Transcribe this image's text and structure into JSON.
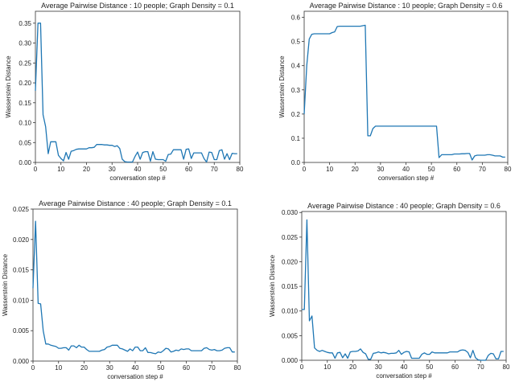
{
  "chart_data": [
    {
      "type": "line",
      "title": "Average Pairwise Distance : 10 people; Graph Density = 0.1",
      "xlabel": "conversation step #",
      "ylabel": "Wasserstein Distance",
      "xlim": [
        0,
        80
      ],
      "ylim": [
        0,
        0.38
      ],
      "xticks": [
        "0",
        "10",
        "20",
        "30",
        "40",
        "50",
        "60",
        "70",
        "80"
      ],
      "yticks": [
        "0.00",
        "0.05",
        "0.10",
        "0.15",
        "0.20",
        "0.25",
        "0.30",
        "0.35"
      ],
      "grid": false,
      "color": "#1f77b4",
      "x_start": 0,
      "values": [
        0.18,
        0.35,
        0.35,
        0.12,
        0.09,
        0.022,
        0.052,
        0.052,
        0.052,
        0.018,
        0.01,
        0.004,
        0.025,
        0.008,
        0.028,
        0.03,
        0.033,
        0.034,
        0.034,
        0.034,
        0.034,
        0.037,
        0.037,
        0.038,
        0.045,
        0.045,
        0.045,
        0.044,
        0.044,
        0.043,
        0.043,
        0.04,
        0.042,
        0.035,
        0.008,
        0.002,
        0.001,
        0.001,
        0.001,
        0.015,
        0.026,
        0.008,
        0.025,
        0.027,
        0.027,
        0.003,
        0.027,
        0.008,
        0.007,
        0.007,
        0.007,
        0.003,
        0.02,
        0.021,
        0.032,
        0.032,
        0.032,
        0.032,
        0.008,
        0.033,
        0.034,
        0.01,
        0.024,
        0.024,
        0.024,
        0.024,
        0.01,
        0.001,
        0.026,
        0.025,
        0.007,
        0.007,
        0.03,
        0.032,
        0.008,
        0.022,
        0.007,
        0.023,
        0.022,
        0.022
      ]
    },
    {
      "type": "line",
      "title": "Average Pairwise Distance : 10 people; Graph Density = 0.6",
      "xlabel": "conversation step #",
      "ylabel": "Wasserstein Distance",
      "xlim": [
        0,
        80
      ],
      "ylim": [
        0,
        0.625
      ],
      "xticks": [
        "0",
        "10",
        "20",
        "30",
        "40",
        "50",
        "60",
        "70",
        "80"
      ],
      "yticks": [
        "0.0",
        "0.1",
        "0.2",
        "0.3",
        "0.4",
        "0.5",
        "0.6"
      ],
      "grid": false,
      "color": "#1f77b4",
      "x_start": 0,
      "values": [
        0.2,
        0.4,
        0.51,
        0.53,
        0.532,
        0.532,
        0.532,
        0.532,
        0.532,
        0.532,
        0.532,
        0.537,
        0.54,
        0.562,
        0.563,
        0.563,
        0.563,
        0.563,
        0.563,
        0.563,
        0.563,
        0.563,
        0.563,
        0.565,
        0.567,
        0.11,
        0.11,
        0.14,
        0.15,
        0.15,
        0.15,
        0.15,
        0.15,
        0.15,
        0.15,
        0.15,
        0.15,
        0.15,
        0.15,
        0.15,
        0.15,
        0.15,
        0.15,
        0.15,
        0.15,
        0.15,
        0.15,
        0.15,
        0.15,
        0.15,
        0.15,
        0.15,
        0.15,
        0.02,
        0.032,
        0.032,
        0.032,
        0.032,
        0.032,
        0.035,
        0.035,
        0.035,
        0.036,
        0.036,
        0.037,
        0.037,
        0.01,
        0.027,
        0.03,
        0.03,
        0.03,
        0.03,
        0.032,
        0.032,
        0.03,
        0.027,
        0.027,
        0.027,
        0.022,
        0.022
      ]
    },
    {
      "type": "line",
      "title": "Average Pairwise Distance : 40 people; Graph Density = 0.1",
      "xlabel": "conversation step #",
      "ylabel": "Wasserstein Distance",
      "xlim": [
        0,
        80
      ],
      "ylim": [
        0,
        0.025
      ],
      "xticks": [
        "0",
        "10",
        "20",
        "30",
        "40",
        "50",
        "60",
        "70",
        "80"
      ],
      "yticks": [
        "0.000",
        "0.005",
        "0.010",
        "0.015",
        "0.020",
        "0.025"
      ],
      "grid": false,
      "color": "#1f77b4",
      "x_start": 0,
      "values": [
        0.012,
        0.023,
        0.0095,
        0.0094,
        0.005,
        0.0028,
        0.0028,
        0.0026,
        0.0025,
        0.0024,
        0.0021,
        0.0021,
        0.0022,
        0.0022,
        0.0018,
        0.0025,
        0.0025,
        0.0022,
        0.0026,
        0.0023,
        0.0023,
        0.0019,
        0.0016,
        0.0016,
        0.0016,
        0.0016,
        0.0016,
        0.0018,
        0.0019,
        0.0023,
        0.0024,
        0.0026,
        0.0026,
        0.0026,
        0.0021,
        0.002,
        0.0018,
        0.0016,
        0.002,
        0.0017,
        0.0023,
        0.0023,
        0.0017,
        0.0017,
        0.0022,
        0.0014,
        0.0014,
        0.0013,
        0.0012,
        0.0015,
        0.0014,
        0.0017,
        0.0021,
        0.002,
        0.0015,
        0.0016,
        0.0018,
        0.0017,
        0.002,
        0.0019,
        0.002,
        0.002,
        0.0017,
        0.0017,
        0.0017,
        0.0017,
        0.0017,
        0.0021,
        0.0022,
        0.0019,
        0.0018,
        0.0019,
        0.0017,
        0.0017,
        0.0018,
        0.0021,
        0.0022,
        0.0022,
        0.0015,
        0.0015
      ]
    },
    {
      "type": "line",
      "title": "Average Pairwise Distance : 40 people; Graph Density = 0.6",
      "xlabel": "conversation step #",
      "ylabel": "Wasserstein Distance",
      "xlim": [
        0,
        80
      ],
      "ylim": [
        0,
        0.0302
      ],
      "xticks": [
        "0",
        "10",
        "20",
        "30",
        "40",
        "50",
        "60",
        "70",
        "80"
      ],
      "yticks": [
        "0.000",
        "0.005",
        "0.010",
        "0.015",
        "0.020",
        "0.025",
        "0.030"
      ],
      "grid": false,
      "color": "#1f77b4",
      "x_start": 0,
      "values": [
        0.0103,
        0.0103,
        0.0285,
        0.008,
        0.009,
        0.0025,
        0.002,
        0.0018,
        0.002,
        0.0018,
        0.0016,
        0.0015,
        0.0015,
        0.0004,
        0.0015,
        0.0016,
        0.0005,
        0.0013,
        0.0004,
        0.0017,
        0.0018,
        0.0018,
        0.0019,
        0.0023,
        0.0016,
        0.0013,
        0.0002,
        0.0002,
        0.0014,
        0.0015,
        0.0017,
        0.0015,
        0.0016,
        0.0015,
        0.0013,
        0.0014,
        0.0014,
        0.0015,
        0.002,
        0.0012,
        0.0016,
        0.0018,
        0.0017,
        0.0004,
        0.0004,
        0.0004,
        0.0004,
        0.0012,
        0.0015,
        0.0012,
        0.0012,
        0.0017,
        0.0015,
        0.0015,
        0.0015,
        0.0015,
        0.0015,
        0.0015,
        0.0017,
        0.0017,
        0.0017,
        0.0017,
        0.002,
        0.0021,
        0.002,
        0.0016,
        0.0005,
        0.002,
        0.0005,
        0.0001,
        0,
        0,
        0,
        0.001,
        0.0014,
        0.0013,
        0.0003,
        0.0003,
        0.0018,
        0.0018
      ]
    }
  ]
}
